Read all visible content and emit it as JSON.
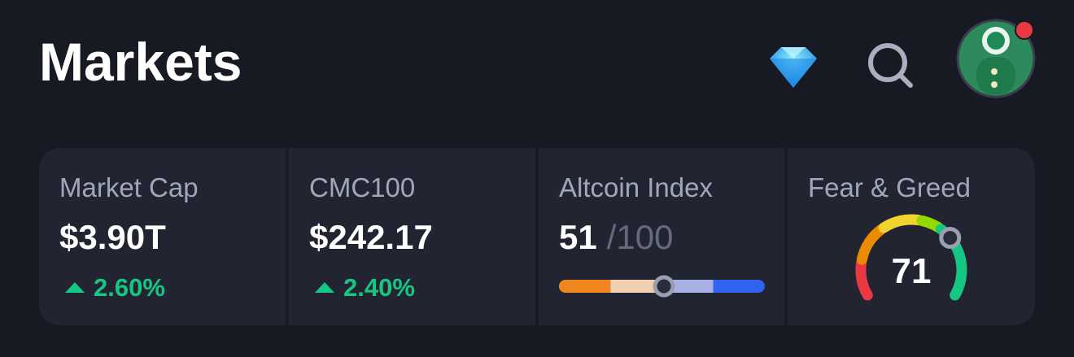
{
  "header": {
    "title": "Markets"
  },
  "stats": [
    {
      "label": "Market Cap",
      "value": "$3.90T",
      "change": "2.60%"
    },
    {
      "label": "CMC100",
      "value": "$242.17",
      "change": "2.40%"
    }
  ],
  "altcoin_index": {
    "label": "Altcoin Index",
    "value": 51,
    "scale": {
      "value": 100,
      "label": "/100"
    }
  },
  "fear_greed": {
    "label": "Fear & Greed",
    "value": 71,
    "range": [
      0,
      100
    ]
  }
}
